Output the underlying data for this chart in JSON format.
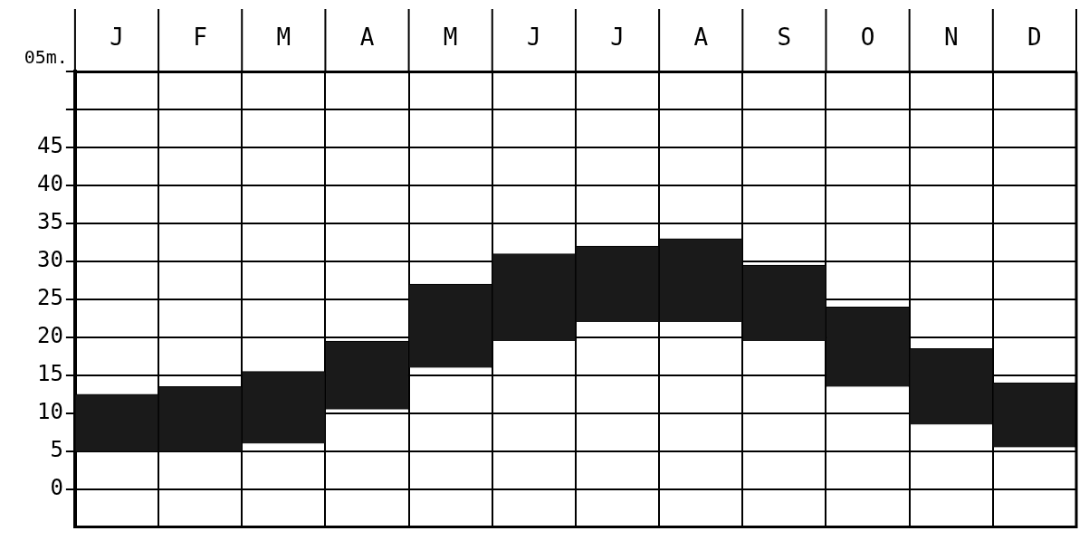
{
  "chart_data": {
    "type": "bar",
    "categories": [
      "J",
      "F",
      "M",
      "A",
      "M",
      "J",
      "J",
      "A",
      "S",
      "O",
      "N",
      "D"
    ],
    "base": [
      5,
      5,
      6,
      10.5,
      16,
      19.5,
      22,
      22,
      19.5,
      13.5,
      8.5,
      5.5
    ],
    "values": [
      7.5,
      8.5,
      9.5,
      9,
      11,
      11.5,
      10,
      11,
      10,
      10.5,
      10,
      8.5
    ],
    "color": "#1a1a1a",
    "ylim": [
      -5,
      55
    ],
    "yticks": [
      0,
      5,
      10,
      15,
      20,
      25,
      30,
      35,
      40,
      45,
      {
        "value": 50,
        "label": null
      },
      {
        "value": 55,
        "label": null
      }
    ],
    "ylabel": "05m.",
    "grid": true,
    "legend": false
  }
}
